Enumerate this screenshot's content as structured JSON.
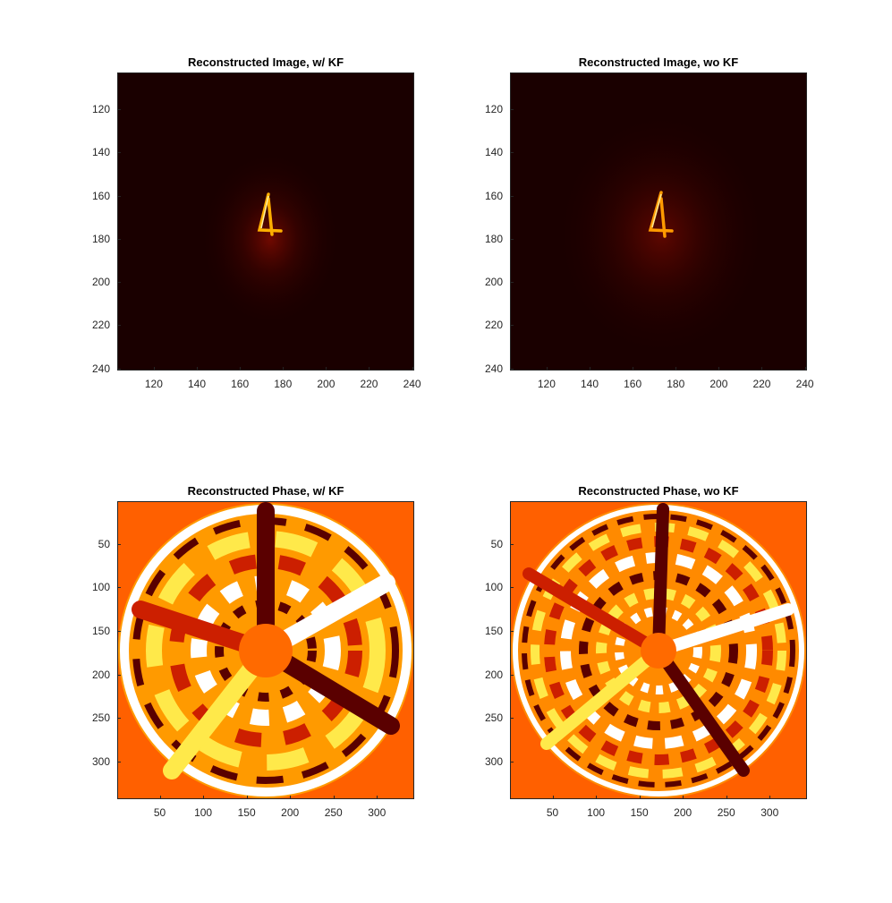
{
  "figure": {
    "background": "#ffffff",
    "colormap": "hot"
  },
  "chart_data": [
    {
      "type": "heatmap",
      "title": "Reconstructed Image, w/ KF",
      "content": "digit 4 reconstruction (amplitude), bright near center on dark background",
      "xlim": [
        103,
        241
      ],
      "ylim": [
        103,
        241
      ],
      "y_direction": "reverse",
      "xticks": [
        120,
        140,
        160,
        180,
        200,
        220,
        240
      ],
      "yticks": [
        120,
        140,
        160,
        180,
        200,
        220,
        240
      ],
      "xlabel": "",
      "ylabel": "",
      "background_color": "#1a0000",
      "grid": false
    },
    {
      "type": "heatmap",
      "title": "Reconstructed Image, wo KF",
      "content": "digit 4 reconstruction (amplitude), bright near center on dark background, noisier",
      "xlim": [
        103,
        241
      ],
      "ylim": [
        103,
        241
      ],
      "y_direction": "reverse",
      "xticks": [
        120,
        140,
        160,
        180,
        200,
        220,
        240
      ],
      "yticks": [
        120,
        140,
        160,
        180,
        200,
        220,
        240
      ],
      "xlabel": "",
      "ylabel": "",
      "background_color": "#1a0000",
      "grid": false
    },
    {
      "type": "heatmap",
      "title": "Reconstructed Phase, w/ KF",
      "content": "circular pupil phase map, radial and ring structure",
      "xlim": [
        1,
        343
      ],
      "ylim": [
        1,
        343
      ],
      "y_direction": "reverse",
      "xticks": [
        50,
        100,
        150,
        200,
        250,
        300
      ],
      "yticks": [
        50,
        100,
        150,
        200,
        250,
        300
      ],
      "xlabel": "",
      "ylabel": "",
      "background_color": "#ff6000",
      "grid": false
    },
    {
      "type": "heatmap",
      "title": "Reconstructed Phase, wo KF",
      "content": "circular pupil phase map, finer radial and ring structure",
      "xlim": [
        1,
        343
      ],
      "ylim": [
        1,
        343
      ],
      "y_direction": "reverse",
      "xticks": [
        50,
        100,
        150,
        200,
        250,
        300
      ],
      "yticks": [
        50,
        100,
        150,
        200,
        250,
        300
      ],
      "xlabel": "",
      "ylabel": "",
      "background_color": "#ff6000",
      "grid": false
    }
  ]
}
